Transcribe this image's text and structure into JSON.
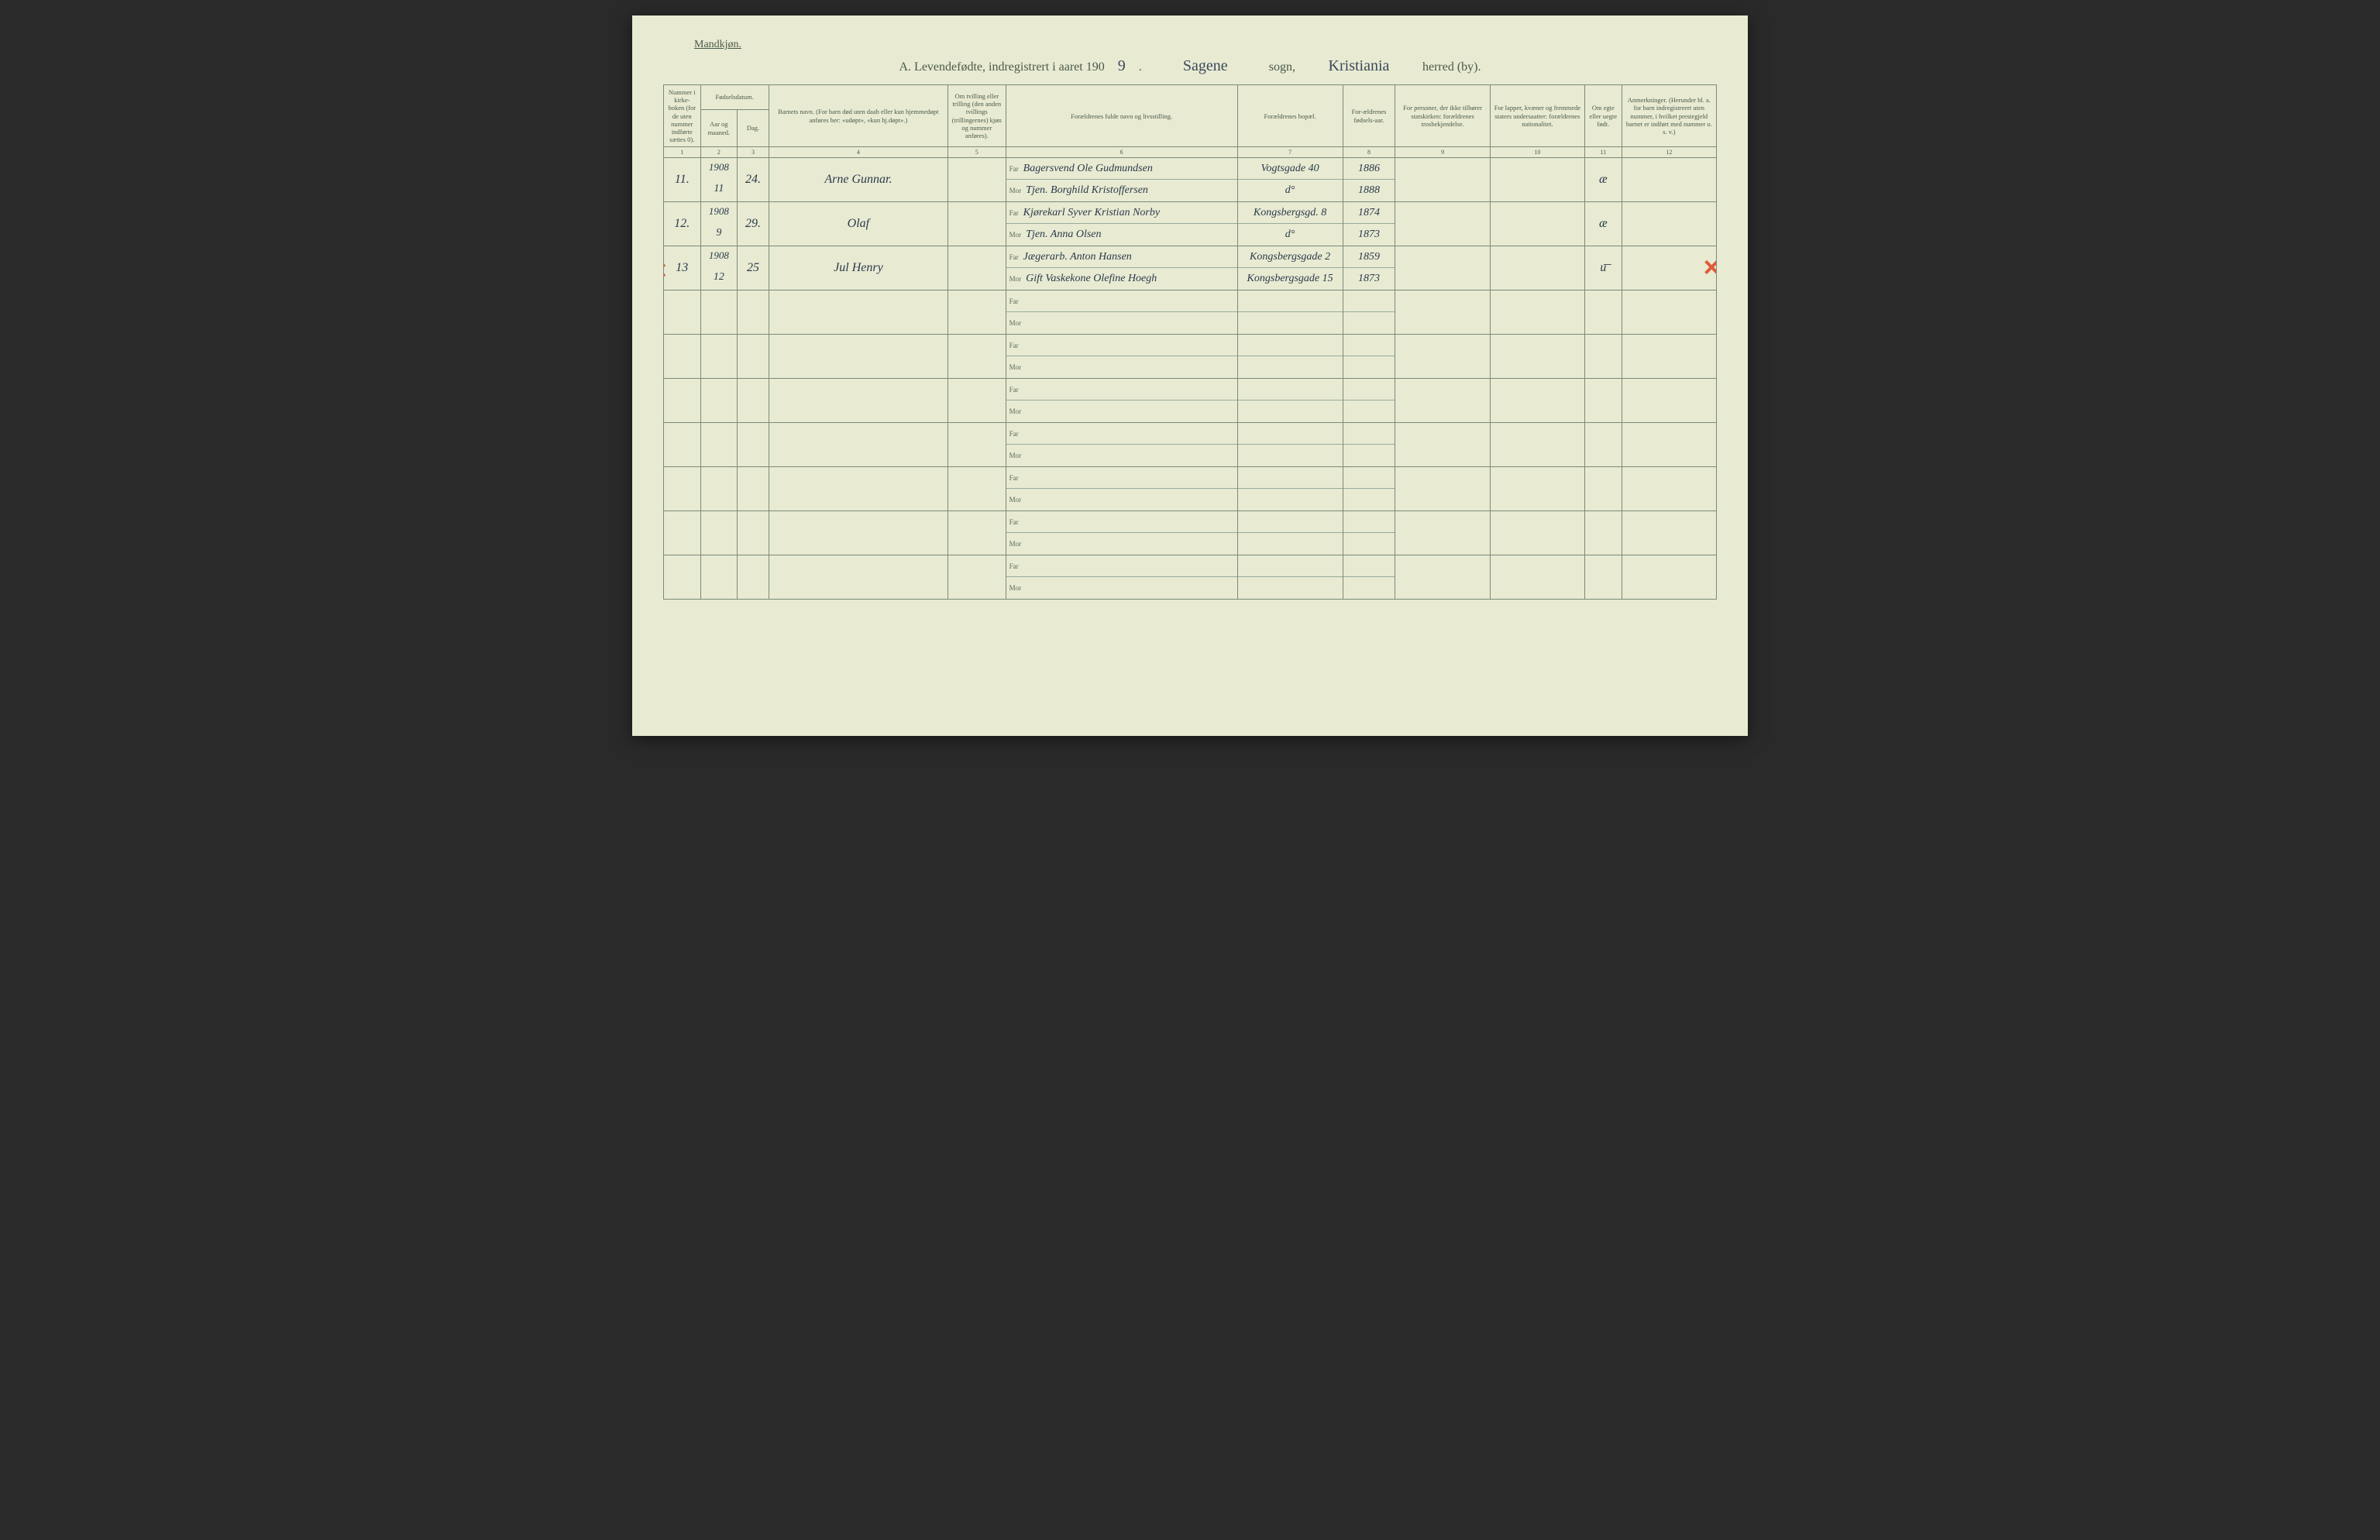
{
  "page": {
    "gender_label": "Mandkjøn.",
    "title_prefix": "A.  Levendefødte, indregistrert i aaret 190",
    "title_year_suffix": "9",
    "title_period": ".",
    "sogn_value": "Sagene",
    "sogn_label": "sogn,",
    "herred_value": "Kristiania",
    "herred_label": "herred (by)."
  },
  "columns": {
    "c1": "Nummer i kirke-boken (for de uten nummer indførte sættes 0).",
    "c2_group": "Fødselsdatum.",
    "c2a": "Aar og maaned.",
    "c2b": "Dag.",
    "c4": "Barnets navn. (For barn død uten daab eller kun hjemmedøpt anføres her: «udøpt», «kun hj.døpt».)",
    "c5": "Om tvilling eller trilling (den anden tvillings (trillingernes) kjøn og nummer anføres).",
    "c6": "Forældrenes fulde navn og livsstilling.",
    "c7": "Forældrenes bopæl.",
    "c8": "For-ældrenes fødsels-aar.",
    "c9": "For personer, der ikke tilhører statskirken: forældrenes trosbekjendelse.",
    "c10": "For lapper, kvæner og fremmede staters undersaatter: forældrenes nationalitet.",
    "c11": "Om egte eller uegte født.",
    "c12": "Anmerkninger. (Herunder bl. a. for barn indregistreert uten nummer, i hvilket prestegjeld barnet er indført med nummer o. s. v.)"
  },
  "colnums": [
    "1",
    "2",
    "3",
    "4",
    "5",
    "6",
    "7",
    "8",
    "9",
    "10",
    "11",
    "12"
  ],
  "far_label": "Far",
  "mor_label": "Mor",
  "rows": [
    {
      "num": "11.",
      "year": "1908",
      "month": "11",
      "day": "24.",
      "name": "Arne Gunnar.",
      "twin": "",
      "far": "Bagersvend Ole Gudmundsen",
      "mor": "Tjen. Borghild Kristoffersen",
      "bopael_far": "Vogtsgade 40",
      "bopael_mor": "d°",
      "faar_far": "1886",
      "faar_mor": "1888",
      "c9": "",
      "c10": "",
      "egte": "æ",
      "anm": "",
      "marked": false
    },
    {
      "num": "12.",
      "year": "1908",
      "month": "9",
      "day": "29.",
      "name": "Olaf",
      "twin": "",
      "far": "Kjørekarl Syver Kristian Norby",
      "mor": "Tjen. Anna Olsen",
      "bopael_far": "Kongsbergsgd. 8",
      "bopael_mor": "d°",
      "faar_far": "1874",
      "faar_mor": "1873",
      "c9": "",
      "c10": "",
      "egte": "æ",
      "anm": "",
      "marked": false
    },
    {
      "num": "13",
      "year": "1908",
      "month": "12",
      "day": "25",
      "name": "Jul Henry",
      "twin": "",
      "far": "Jægerarb. Anton Hansen",
      "mor": "Gift Vaskekone Olefine Hoegh",
      "bopael_far": "Kongsbergsgade 2",
      "bopael_mor": "Kongsbergsgade 15",
      "faar_far": "1859",
      "faar_mor": "1873",
      "c9": "",
      "c10": "",
      "egte": "u͞",
      "anm": "",
      "marked": true
    },
    {
      "blank": true
    },
    {
      "blank": true
    },
    {
      "blank": true
    },
    {
      "blank": true
    },
    {
      "blank": true
    },
    {
      "blank": true
    },
    {
      "blank": true
    }
  ],
  "style": {
    "page_bg": "#e8ead2",
    "rule_color": "#7a8a7a",
    "printed_text_color": "#4a5a4a",
    "handwriting_color": "#2a3a4a",
    "red_mark_color": "#e05a3a",
    "col_widths_pct": [
      3.5,
      3.5,
      3,
      17,
      5.5,
      22,
      10,
      5,
      9,
      9,
      3.5,
      9
    ]
  }
}
